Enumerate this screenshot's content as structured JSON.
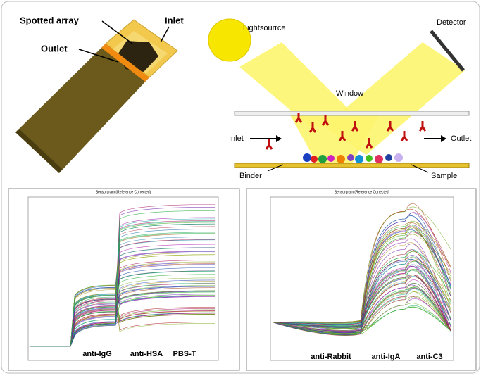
{
  "photo": {
    "labels": [
      "Spotted array",
      "Inlet",
      "Outlet"
    ]
  },
  "schematic": {
    "light_source": "Lightsourrce",
    "detector": "Detector",
    "window": "Window",
    "inlet": "Inlet",
    "outlet": "Outlet",
    "binder": "Binder",
    "sample": "Sample"
  },
  "sensorgrams": [
    {
      "title": "Sensorgram (Reference Corrected)",
      "labels": [
        "anti-IgG",
        "anti-HSA",
        "PBS-T"
      ]
    },
    {
      "title": "Sensorgram (Reference Corrected)",
      "labels": [
        "anti-Rabbit",
        "anti-IgA",
        "anti-C3"
      ]
    }
  ]
}
